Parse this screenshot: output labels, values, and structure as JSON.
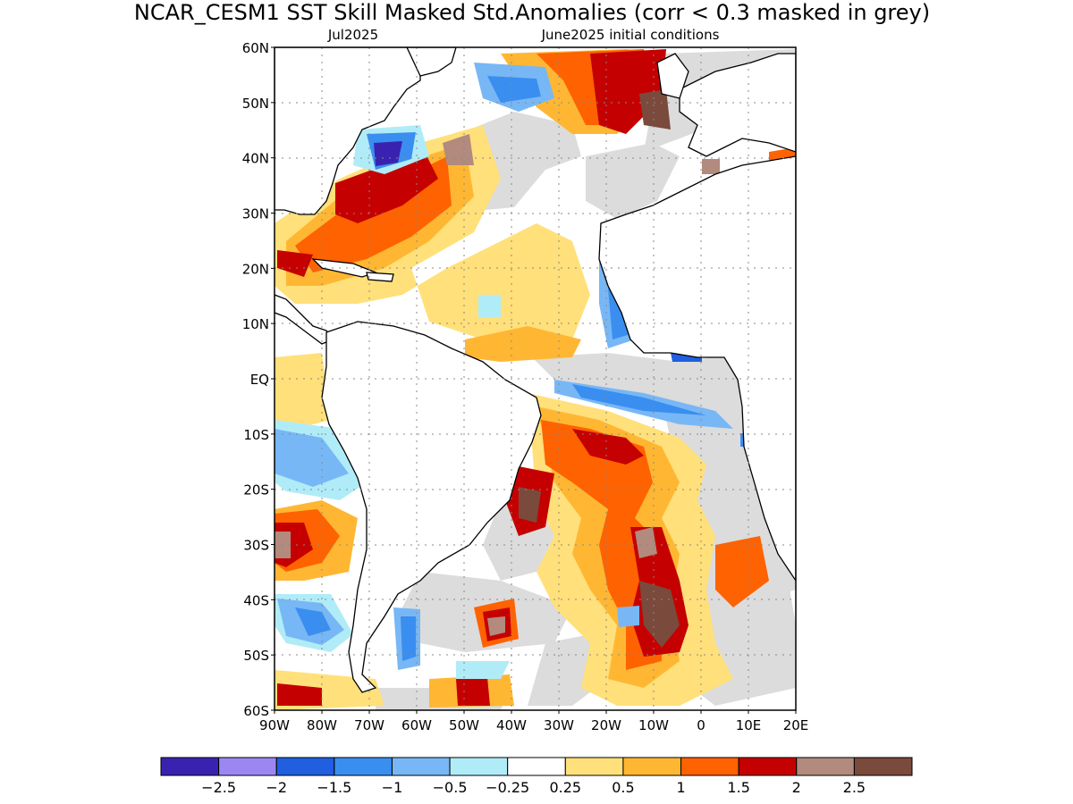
{
  "title": "NCAR_CESM1   SST Skill Masked Std.Anomalies (corr < 0.3 masked in grey)",
  "subtitle_left": "Jul2025",
  "subtitle_right": "June2025 initial conditions",
  "axes": {
    "lat_labels": [
      "60N",
      "50N",
      "40N",
      "30N",
      "20N",
      "10N",
      "EQ",
      "10S",
      "20S",
      "30S",
      "40S",
      "50S",
      "60S"
    ],
    "lon_labels": [
      "90W",
      "80W",
      "70W",
      "60W",
      "50W",
      "40W",
      "30W",
      "20W",
      "10W",
      "0",
      "10E",
      "20E"
    ],
    "lat_range": [
      -60,
      60
    ],
    "lon_range": [
      -90,
      20
    ],
    "grid": "dotted"
  },
  "colorbar": {
    "colors": [
      "#3a22b0",
      "#9c87f2",
      "#1f5fe0",
      "#3a8ef0",
      "#78b7f5",
      "#b0ecf8",
      "#ffffff",
      "#ffe07a",
      "#ffb733",
      "#ff6200",
      "#c50000",
      "#b28a7e",
      "#7a4a3c"
    ],
    "tick_labels": [
      "−2.5",
      "−2",
      "−1.5",
      "−1",
      "−0.5",
      "−0.25",
      "0.25",
      "0.5",
      "1",
      "1.5",
      "2",
      "2.5"
    ]
  },
  "legend_colors": {
    "masked": "#dcdcdc",
    "land": "#ffffff",
    "coast": "#000000"
  }
}
